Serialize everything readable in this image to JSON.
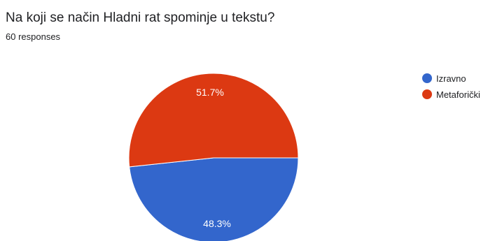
{
  "header": {
    "question": "Na koji se način Hladni rat spominje u tekstu?",
    "responses": "60 responses"
  },
  "chart_data": {
    "type": "pie",
    "slices": [
      {
        "label": "Izravno",
        "value": 48.3,
        "display": "48.3%",
        "color": "#3366cc"
      },
      {
        "label": "Metaforički",
        "value": 51.7,
        "display": "51.7%",
        "color": "#dc3912"
      }
    ],
    "legend_position": "right"
  }
}
